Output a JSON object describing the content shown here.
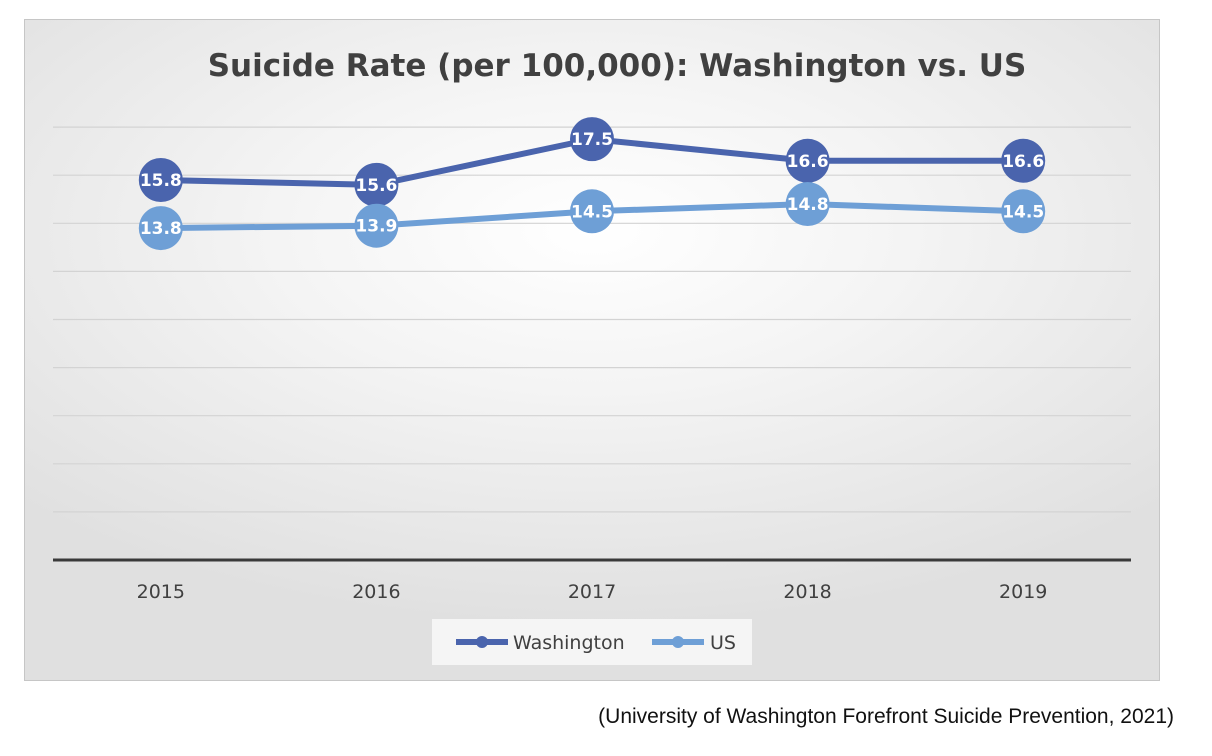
{
  "chart_data": {
    "type": "line",
    "title": "Suicide Rate (per 100,000): Washington vs. US",
    "categories": [
      "2015",
      "2016",
      "2017",
      "2018",
      "2019"
    ],
    "series": [
      {
        "name": "Washington",
        "values": [
          15.8,
          15.6,
          17.5,
          16.6,
          16.6
        ],
        "labels": [
          "15.8",
          "15.6",
          "17.5",
          "16.6",
          "16.6"
        ],
        "color": "#4a64ad"
      },
      {
        "name": "US",
        "values": [
          13.8,
          13.9,
          14.5,
          14.8,
          14.5
        ],
        "labels": [
          "13.8",
          "13.9",
          "14.5",
          "14.8",
          "14.5"
        ],
        "color": "#6e9fd6"
      }
    ],
    "xlabel": "",
    "ylabel": "",
    "ylim": [
      0,
      20
    ],
    "y_axis_visible": false,
    "grid": true,
    "legend": "bottom-center"
  },
  "caption": "(University of Washington Forefront Suicide Prevention, 2021)"
}
